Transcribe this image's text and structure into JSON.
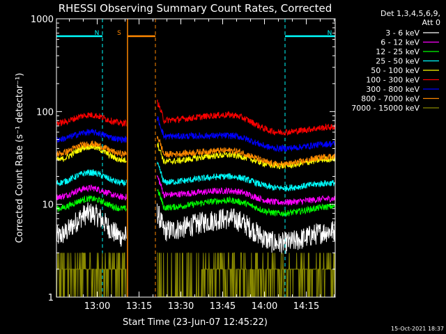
{
  "chart_data": {
    "type": "line",
    "title": "RHESSI Observing Summary Count Rates, Corrected",
    "xlabel": "Start Time (23-Jun-07 12:45:22)",
    "ylabel": "Corrected Count Rate (s⁻¹ detector⁻¹)",
    "y_scale": "log",
    "ylim": [
      1,
      1000
    ],
    "xlim_minutes": [
      0,
      100
    ],
    "y_ticks": [
      {
        "value": 1,
        "label": "1"
      },
      {
        "value": 10,
        "label": "10"
      },
      {
        "value": 100,
        "label": "100"
      },
      {
        "value": 1000,
        "label": "1000"
      }
    ],
    "x_ticks": [
      {
        "value": 14.63,
        "label": "13:00"
      },
      {
        "value": 29.63,
        "label": "13:15"
      },
      {
        "value": 44.63,
        "label": "13:30"
      },
      {
        "value": 59.63,
        "label": "13:45"
      },
      {
        "value": 74.63,
        "label": "14:00"
      },
      {
        "value": 89.63,
        "label": "14:15"
      }
    ],
    "legend_header": [
      "Det 1,3,4,5,6,9,",
      "Att 0"
    ],
    "legend_position": "right",
    "series": [
      {
        "name": "3 - 6 keV",
        "color": "#ffffff",
        "levels": [
          4.5,
          8,
          4.5,
          7,
          3.8,
          5.2
        ]
      },
      {
        "name": "6 - 12 keV",
        "color": "#ff00ff",
        "levels": [
          12,
          15,
          11,
          14,
          10.5,
          11.5
        ]
      },
      {
        "name": "12 - 25 keV",
        "color": "#00ff00",
        "levels": [
          9,
          11.5,
          8,
          11,
          8,
          9.5
        ]
      },
      {
        "name": "25 - 50 keV",
        "color": "#00ffff",
        "levels": [
          17,
          22,
          15,
          20,
          15,
          17
        ]
      },
      {
        "name": "50 - 100 keV",
        "color": "#ffff00",
        "levels": [
          30,
          42,
          25,
          34,
          26,
          31
        ]
      },
      {
        "name": "100 - 300 keV",
        "color": "#ff0000",
        "levels": [
          75,
          92,
          70,
          92,
          60,
          68
        ]
      },
      {
        "name": "300 - 800 keV",
        "color": "#0000ff",
        "levels": [
          50,
          60,
          47,
          55,
          40,
          45
        ]
      },
      {
        "name": "800 - 7000 keV",
        "color": "#ff8800",
        "levels": [
          35,
          45,
          30,
          38,
          27,
          33
        ]
      },
      {
        "name": "7000 - 15000 keV",
        "color": "#888800",
        "levels": [
          1.6,
          2.5,
          1.3,
          1.8,
          1.4,
          1.6
        ]
      }
    ],
    "intervals": [
      {
        "label": "N",
        "color": "#00ffff",
        "start": 0,
        "end": 16.5
      },
      {
        "label": "N",
        "color": "#00ffff",
        "start": 82,
        "end": 100
      },
      {
        "label": "S",
        "color": "#ff8800",
        "start": 25.5,
        "end": 35.5
      }
    ],
    "timestamp": "15-Oct-2021 18:37"
  }
}
